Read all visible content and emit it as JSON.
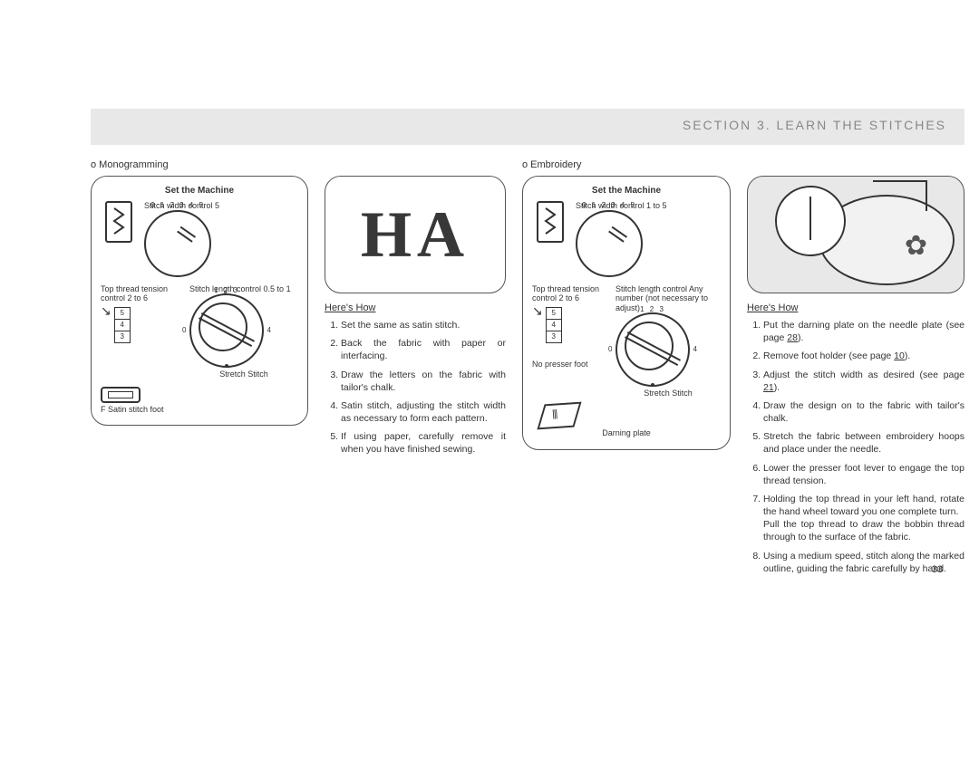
{
  "header": {
    "title": "SECTION 3.   LEARN THE STITCHES"
  },
  "page_number": "33",
  "mono": {
    "label": "o  Monogramming",
    "panel_title": "Set the Machine",
    "width_label": "Stitch width control 5",
    "width_ticks": "0 1 2 3 4 5",
    "tension_label": "Top thread tension control 2 to 6",
    "length_label": "Stitch length control 0.5 to 1",
    "length_ticks": "1 2 3  /  0    4",
    "stretch_label": "Stretch Stitch",
    "foot_label": "F  Satin stitch foot",
    "heres_how": "Here's How",
    "steps": [
      "Set the same as satin stitch.",
      "Back the fabric with paper or interfacing.",
      "Draw the letters on the fabric with tailor's chalk.",
      "Satin stitch, adjusting the stitch width as necessary to form each pattern.",
      "If using paper, carefully remove it when you have finished sewing."
    ],
    "illus_text": "HA"
  },
  "emb": {
    "label": "o  Embroidery",
    "panel_title": "Set the Machine",
    "width_label": "Stitch width control 1 to 5",
    "width_ticks": "0 1 2 3 4 5",
    "tension_label": "Top thread tension control 2 to 6",
    "length_label": "Stitch length control Any number (not necessary to adjust)",
    "length_ticks": "1 2 3  /  0    4",
    "stretch_label": "Stretch Stitch",
    "nopresser_label": "No presser foot",
    "darning_label": "Darning plate",
    "heres_how": "Here's How",
    "steps": [
      "Put the darning plate on the needle plate (see page <u>28</u>).",
      "Remove foot holder (see page <u>10</u>).",
      "Adjust the stitch width as desired (see page <u>21</u>).",
      "Draw the design on to the fabric with tailor's chalk.",
      "Stretch the fabric between embroidery hoops and place under the needle.",
      "Lower the presser foot lever to engage the top thread tension.",
      "Holding the top thread in your left hand, rotate the hand wheel toward you one complete turn.<br>Pull the top thread to draw the bobbin thread through to the surface of the fabric.",
      "Using a medium speed, stitch along the marked outline, guiding the fabric carefully by hand."
    ]
  },
  "colors": {
    "band": "#e8e8e8",
    "text": "#333333",
    "border": "#555555"
  }
}
